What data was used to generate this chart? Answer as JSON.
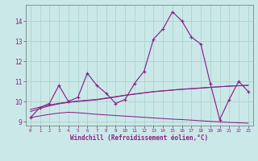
{
  "xlabel": "Windchill (Refroidissement éolien,°C)",
  "bg_color": "#cbe8e8",
  "grid_color": "#aad4cc",
  "line_color": "#882288",
  "x": [
    0,
    1,
    2,
    3,
    4,
    5,
    6,
    7,
    8,
    9,
    10,
    11,
    12,
    13,
    14,
    15,
    16,
    17,
    18,
    19,
    20,
    21,
    22,
    23
  ],
  "y_main": [
    9.2,
    9.7,
    9.9,
    10.8,
    10.0,
    10.2,
    11.4,
    10.8,
    10.4,
    9.9,
    10.1,
    10.9,
    11.5,
    13.1,
    13.6,
    14.45,
    14.0,
    13.2,
    12.85,
    10.9,
    9.1,
    10.1,
    11.0,
    10.5
  ],
  "y_trend1": [
    9.5,
    9.65,
    9.78,
    9.88,
    9.95,
    10.0,
    10.04,
    10.08,
    10.15,
    10.22,
    10.3,
    10.36,
    10.42,
    10.48,
    10.52,
    10.56,
    10.6,
    10.63,
    10.66,
    10.7,
    10.73,
    10.76,
    10.78,
    10.8
  ],
  "y_trend2": [
    9.6,
    9.72,
    9.82,
    9.91,
    9.97,
    10.02,
    10.06,
    10.1,
    10.17,
    10.24,
    10.31,
    10.37,
    10.43,
    10.49,
    10.53,
    10.57,
    10.61,
    10.64,
    10.67,
    10.7,
    10.73,
    10.76,
    10.78,
    10.8
  ],
  "y_trend3": [
    9.2,
    9.28,
    9.36,
    9.42,
    9.46,
    9.44,
    9.4,
    9.36,
    9.33,
    9.3,
    9.27,
    9.24,
    9.21,
    9.18,
    9.15,
    9.12,
    9.1,
    9.07,
    9.04,
    9.01,
    8.98,
    8.96,
    8.94,
    8.92
  ],
  "ylim": [
    8.8,
    14.8
  ],
  "xlim": [
    -0.5,
    23.5
  ],
  "yticks": [
    9,
    10,
    11,
    12,
    13,
    14
  ]
}
